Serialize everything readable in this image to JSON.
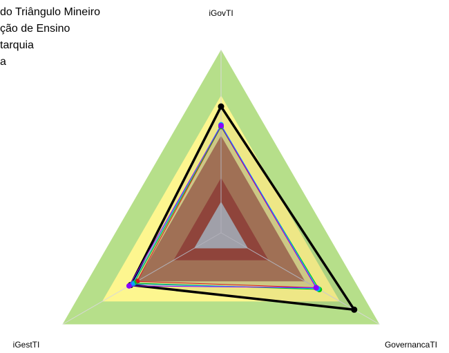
{
  "chart_data": {
    "type": "radar",
    "legend": [
      "do Triângulo Mineiro",
      "ção de Ensino",
      "tarquia",
      "a"
    ],
    "axes": [
      "iGovTI",
      "GovernancaTI",
      "iGestTI"
    ],
    "rlim": [
      0,
      1
    ],
    "bands": [
      {
        "color": "#b6df8a",
        "value": 1.0
      },
      {
        "color": "#fdf68f",
        "value": 0.75
      },
      {
        "color": "#c0804e",
        "value": 0.53
      },
      {
        "color": "#a9432c",
        "value": 0.3
      },
      {
        "color": "#c0c0c0",
        "value": 0.17
      }
    ],
    "series": [
      {
        "color": "#000000",
        "values": [
          0.69,
          0.84,
          0.57
        ]
      },
      {
        "color": "#ff0000",
        "values": [
          0.58,
          0.6,
          0.53
        ]
      },
      {
        "color": "#00cc00",
        "values": [
          0.58,
          0.62,
          0.55
        ]
      },
      {
        "color": "#00aaff",
        "values": [
          0.59,
          0.61,
          0.56
        ]
      },
      {
        "color": "#8a00ff",
        "values": [
          0.585,
          0.6,
          0.58
        ]
      }
    ]
  }
}
